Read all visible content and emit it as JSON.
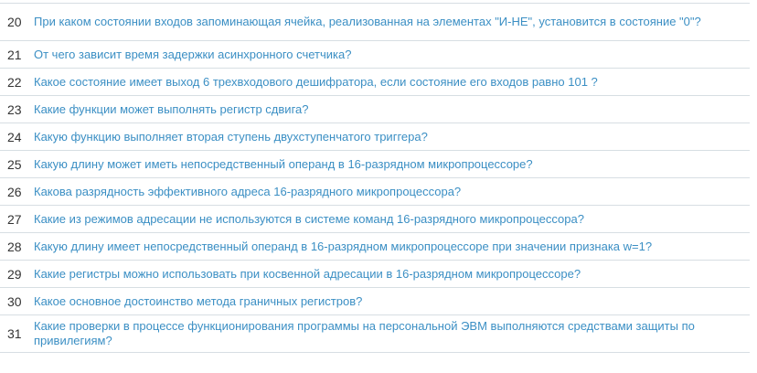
{
  "questions": [
    {
      "num": "20",
      "text": "При каком состоянии входов запоминающая ячейка, реализованная на элементах \"И-НЕ\", установится в состояние \"0\"?"
    },
    {
      "num": "21",
      "text": "От чего зависит время задержки асинхронного счетчика?"
    },
    {
      "num": "22",
      "text": "Какое состояние имеет выход 6 трехвходового дешифратора, если состояние его входов равно 101 ?"
    },
    {
      "num": "23",
      "text": "Какие функции может выполнять регистр сдвига?"
    },
    {
      "num": "24",
      "text": "Какую функцию выполняет вторая ступень двухступенчатого триггера?"
    },
    {
      "num": "25",
      "text": "Какую длину может иметь непосредственный операнд в 16-разрядном микропроцессоре?"
    },
    {
      "num": "26",
      "text": "Какова разрядность эффективного адреса 16-разрядного микропроцессора?"
    },
    {
      "num": "27",
      "text": "Какие из режимов адресации не используются в системе команд 16-разрядного микропроцессора?"
    },
    {
      "num": "28",
      "text": "Какую длину имеет непосредственный операнд в 16-разрядном микропроцессоре при значении признака w=1?"
    },
    {
      "num": "29",
      "text": "Какие регистры можно использовать при косвенной адресации в 16-разрядном микропроцессоре?"
    },
    {
      "num": "30",
      "text": "Какое основное достоинство метода граничных регистров?"
    },
    {
      "num": "31",
      "text": "Какие проверки в процессе функционирования программы на персональной ЭВМ выполняются средствами защиты по привилегиям?"
    }
  ],
  "colors": {
    "link": "#3b8fc4",
    "number": "#333333",
    "divider": "#d7dee3"
  }
}
